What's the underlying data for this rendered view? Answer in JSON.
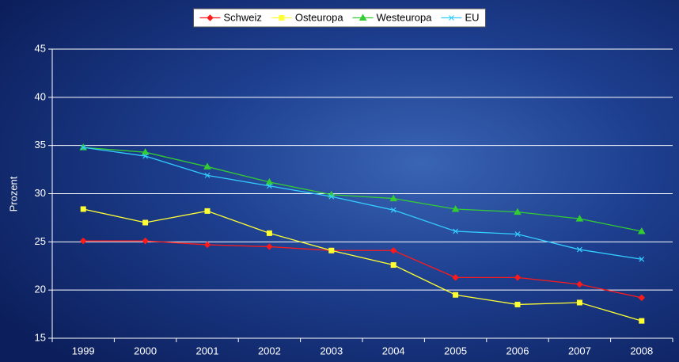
{
  "chart_data": {
    "type": "line",
    "y_label": "Prozent",
    "categories": [
      "1999",
      "2000",
      "2001",
      "2002",
      "2003",
      "2004",
      "2005",
      "2006",
      "2007",
      "2008"
    ],
    "series": [
      {
        "name": "Schweiz",
        "color": "#ff1a1a",
        "marker": "diamond",
        "values": [
          25.1,
          25.1,
          24.7,
          24.5,
          24.1,
          24.1,
          21.3,
          21.3,
          20.6,
          19.2
        ]
      },
      {
        "name": "Osteuropa",
        "color": "#ffff33",
        "marker": "square",
        "values": [
          28.4,
          27.0,
          28.2,
          25.9,
          24.1,
          22.6,
          19.5,
          18.5,
          18.7,
          16.8
        ]
      },
      {
        "name": "Westeuropa",
        "color": "#33cc33",
        "marker": "triangle",
        "values": [
          34.8,
          34.3,
          32.8,
          31.2,
          29.9,
          29.5,
          28.4,
          28.1,
          27.4,
          26.1
        ]
      },
      {
        "name": "EU",
        "color": "#33ccff",
        "marker": "x",
        "values": [
          34.8,
          33.9,
          31.9,
          30.8,
          29.7,
          28.3,
          26.1,
          25.8,
          24.2,
          23.2
        ]
      }
    ],
    "ylim": [
      15,
      45
    ],
    "yticks": [
      15,
      20,
      25,
      30,
      35,
      40,
      45
    ],
    "grid": true,
    "legend": "top"
  }
}
